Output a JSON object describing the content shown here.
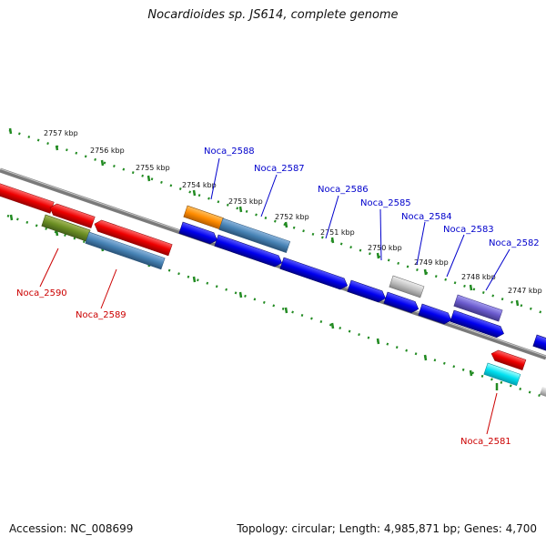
{
  "title": "Nocardioides sp. JS614, complete genome",
  "footer": {
    "accession": "Accession: NC_008699",
    "summary": "Topology: circular; Length: 4,985,871 bp; Genes: 4,700"
  },
  "scale_ticks": [
    "2757 kbp",
    "2756 kbp",
    "2755 kbp",
    "2754 kbp",
    "2753 kbp",
    "2752 kbp",
    "2751 kbp",
    "2750 kbp",
    "2749 kbp",
    "2748 kbp",
    "2747 kbp"
  ],
  "gene_labels": {
    "top": [
      "Noca_2588",
      "Noca_2587",
      "Noca_2586",
      "Noca_2585",
      "Noca_2584",
      "Noca_2583",
      "Noca_2582"
    ],
    "bottom": [
      "Noca_2590",
      "Noca_2589",
      "Noca_2581"
    ]
  },
  "colors": {
    "forward_label": "#0000cc",
    "reverse_label": "#cc0000",
    "backbone": "#808080",
    "scale_dots": "#228b22"
  }
}
